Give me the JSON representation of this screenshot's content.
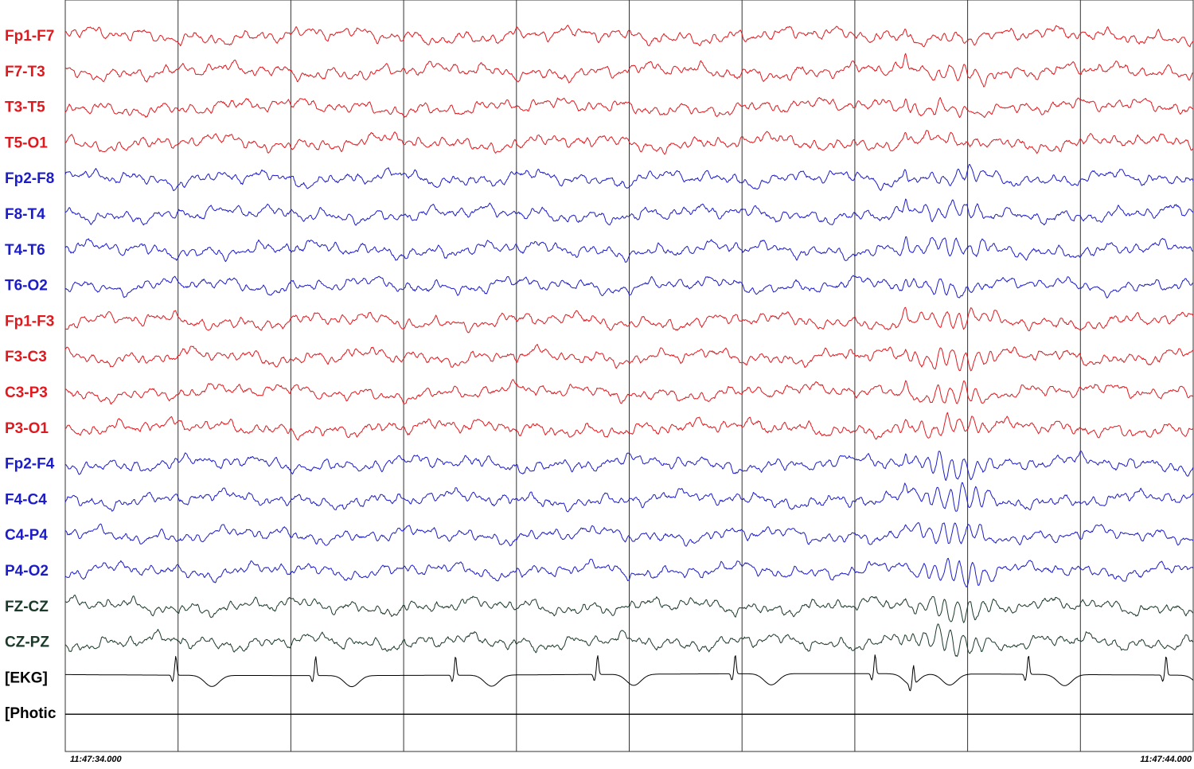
{
  "colors": {
    "left": "#e0191f",
    "right": "#1c1cc8",
    "midline": "#1b3a2a",
    "aux": "#000000",
    "gridline": "#333333"
  },
  "chart_data": {
    "type": "line",
    "title": "",
    "xlabel": "",
    "ylabel": "",
    "time_start": "11:47:34.000",
    "time_end": "11:47:44.000",
    "x_range_seconds": [
      0,
      10
    ],
    "gridline_interval_seconds": 1,
    "grid": true,
    "channels": [
      {
        "name": "Fp1-F7",
        "group": "left"
      },
      {
        "name": "F7-T3",
        "group": "left"
      },
      {
        "name": "T3-T5",
        "group": "left"
      },
      {
        "name": "T5-O1",
        "group": "left"
      },
      {
        "name": "Fp2-F8",
        "group": "right"
      },
      {
        "name": "F8-T4",
        "group": "right"
      },
      {
        "name": "T4-T6",
        "group": "right"
      },
      {
        "name": "T6-O2",
        "group": "right"
      },
      {
        "name": "Fp1-F3",
        "group": "left"
      },
      {
        "name": "F3-C3",
        "group": "left"
      },
      {
        "name": "C3-P3",
        "group": "left"
      },
      {
        "name": "P3-O1",
        "group": "left"
      },
      {
        "name": "Fp2-F4",
        "group": "right"
      },
      {
        "name": "F4-C4",
        "group": "right"
      },
      {
        "name": "C4-P4",
        "group": "right"
      },
      {
        "name": "P4-O2",
        "group": "right"
      },
      {
        "name": "FZ-CZ",
        "group": "midline"
      },
      {
        "name": "CZ-PZ",
        "group": "midline"
      },
      {
        "name": "[EKG]",
        "group": "aux"
      },
      {
        "name": "[Photic",
        "group": "aux"
      }
    ],
    "ekg_r_peaks_seconds": [
      0.98,
      2.22,
      3.46,
      4.72,
      5.94,
      7.18,
      7.52,
      8.54,
      9.76
    ],
    "burst_onset_seconds": 7.45,
    "burst_end_seconds": 8.3
  }
}
